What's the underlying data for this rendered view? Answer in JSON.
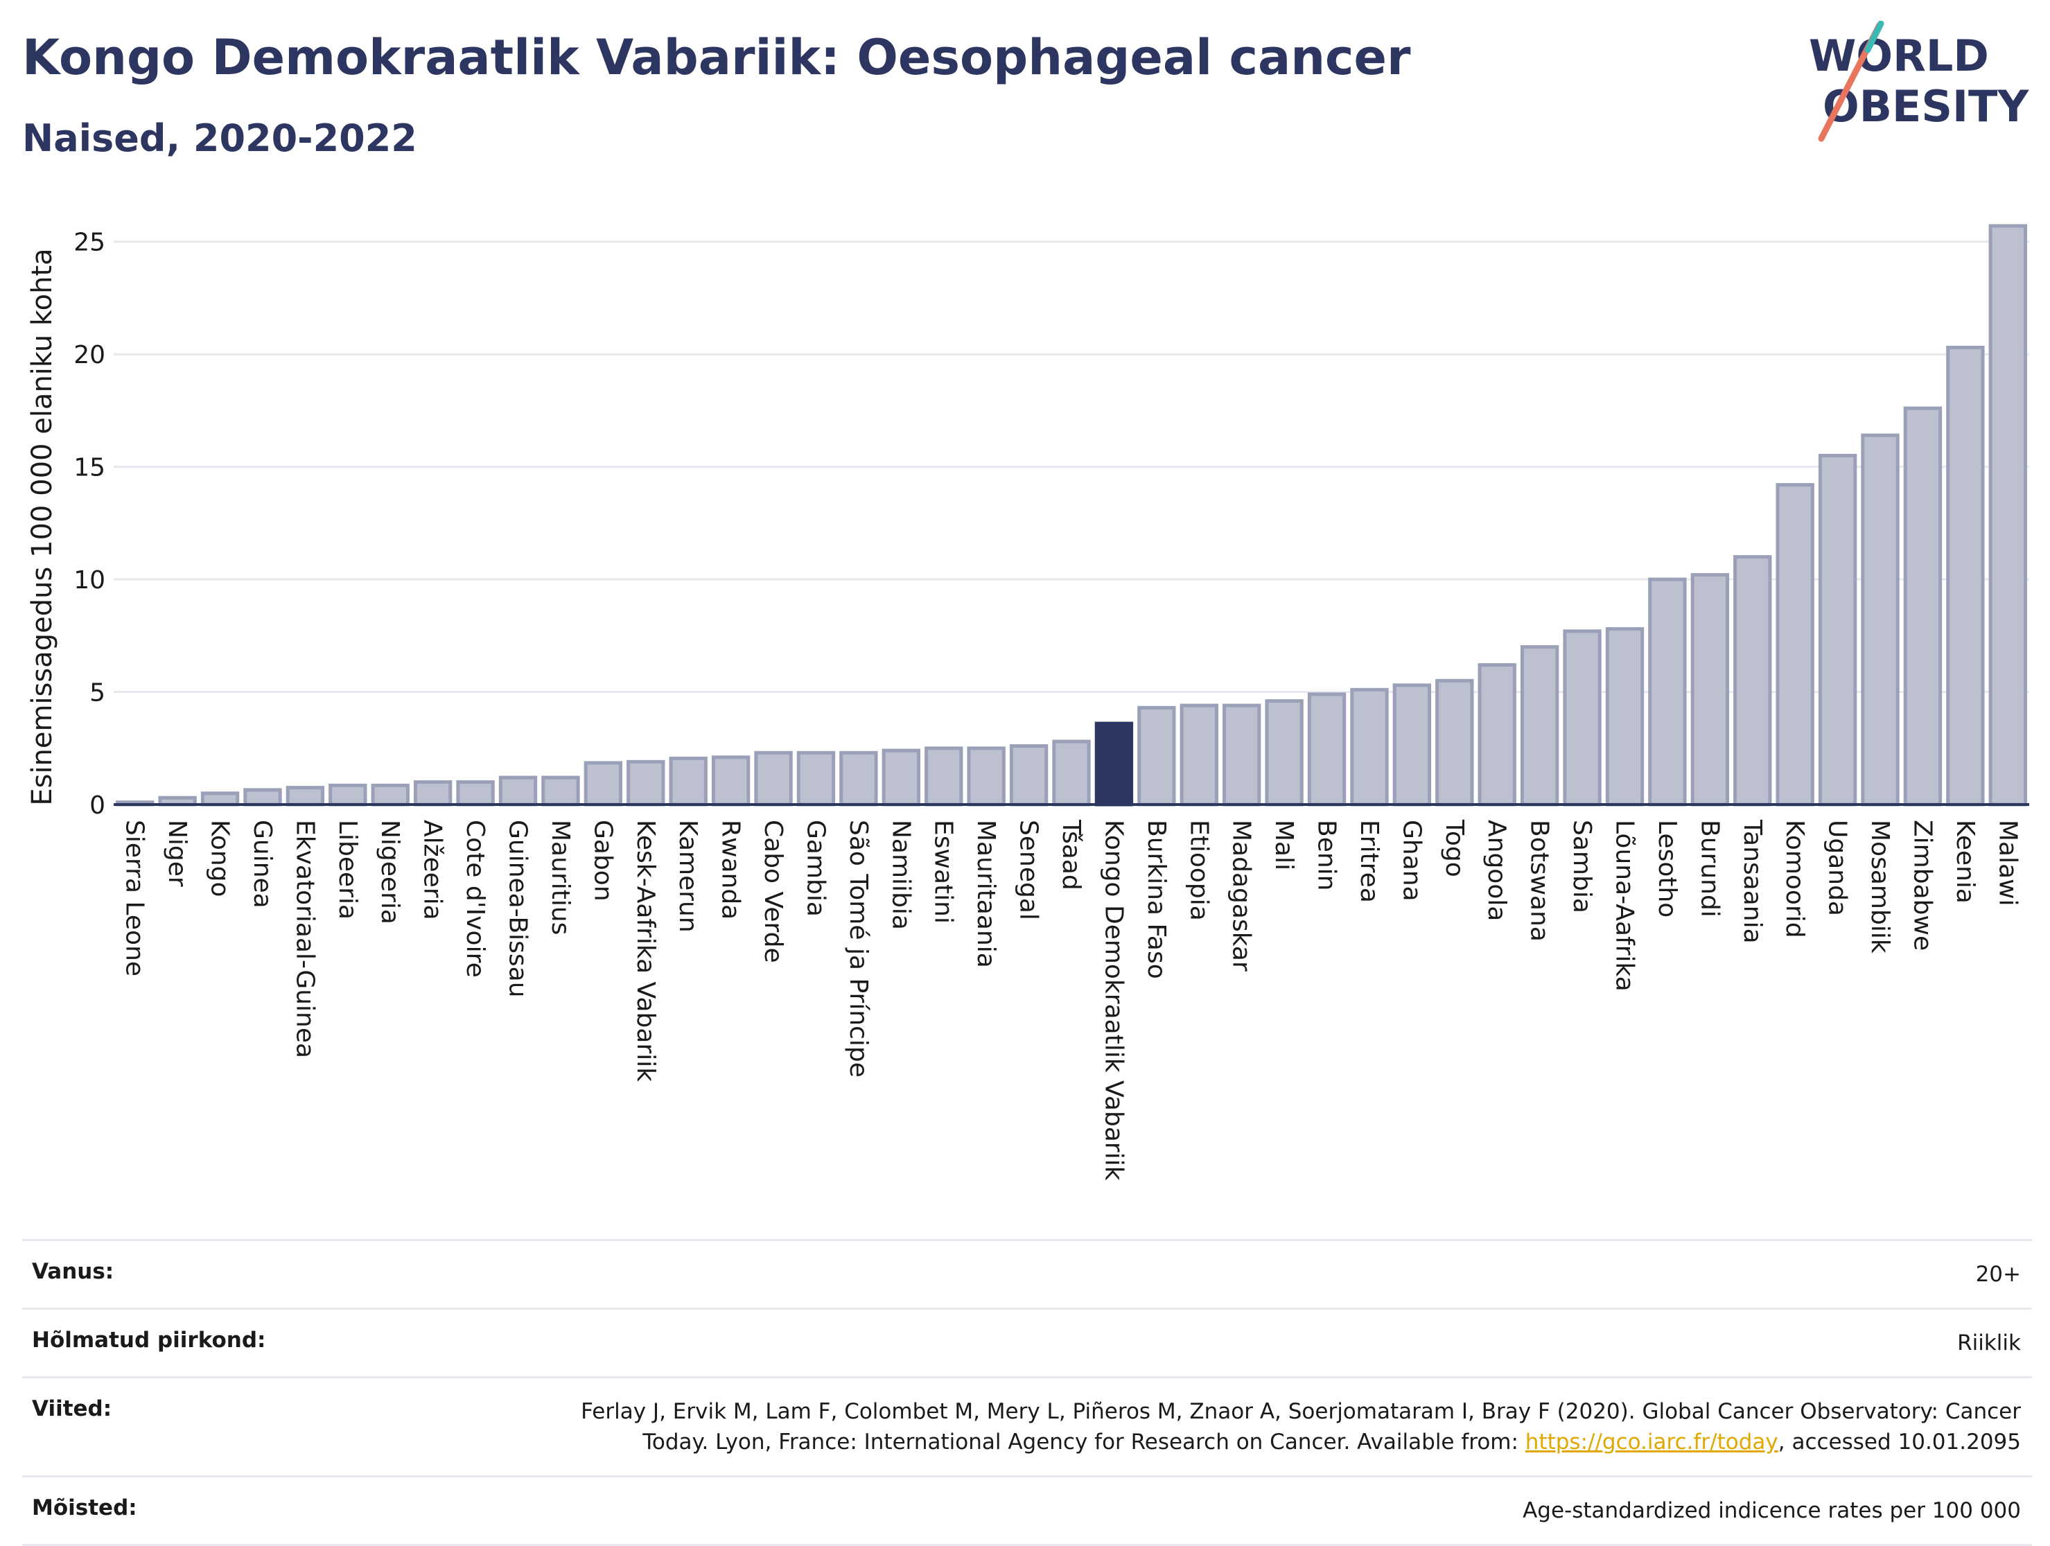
{
  "header": {
    "title": "Kongo Demokraatlik Vabariik: Oesophageal cancer",
    "subtitle": "Naised, 2020-2022"
  },
  "logo": {
    "line1": "WORLD",
    "line2": "OBESITY",
    "colors": [
      "#2d3561",
      "#e8765f",
      "#3cb8b5"
    ]
  },
  "chart_data": {
    "type": "bar",
    "ylabel": "Esinemissagedus 100 000 elaniku kohta",
    "ylim": [
      0,
      26.5
    ],
    "yticks": [
      0,
      5,
      10,
      15,
      20,
      25
    ],
    "highlight": "Kongo Demokraatlik Vabariik",
    "colors": {
      "bar": "#bcc0cf",
      "bar_border": "#9aa0b8",
      "highlight": "#2d3561",
      "grid": "#e6e9ee",
      "axis": "#2d3561"
    },
    "categories": [
      "Sierra Leone",
      "Niger",
      "Kongo",
      "Guinea",
      "Ekvatoriaal-Guinea",
      "Libeeria",
      "Nigeeria",
      "Alžeeria",
      "Cote d'Ivoire",
      "Guinea-Bissau",
      "Mauritius",
      "Gabon",
      "Kesk-Aafrika Vabariik",
      "Kamerun",
      "Rwanda",
      "Cabo Verde",
      "Gambia",
      "São Tomé ja Príncipe",
      "Namiibia",
      "Eswatini",
      "Mauritaania",
      "Senegal",
      "Tšaad",
      "Kongo Demokraatlik Vabariik",
      "Burkina Faso",
      "Etioopia",
      "Madagaskar",
      "Mali",
      "Benin",
      "Eritrea",
      "Ghana",
      "Togo",
      "Angoola",
      "Botswana",
      "Sambia",
      "Lõuna-Aafrika",
      "Lesotho",
      "Burundi",
      "Tansaania",
      "Komoorid",
      "Uganda",
      "Mosambiik",
      "Zimbabwe",
      "Keenia",
      "Malawi"
    ],
    "values": [
      0.1,
      0.3,
      0.5,
      0.65,
      0.75,
      0.85,
      0.85,
      1.0,
      1.0,
      1.2,
      1.2,
      1.85,
      1.9,
      2.05,
      2.1,
      2.3,
      2.3,
      2.3,
      2.4,
      2.5,
      2.5,
      2.6,
      2.8,
      3.6,
      4.3,
      4.4,
      4.4,
      4.6,
      4.9,
      5.1,
      5.3,
      5.5,
      6.2,
      7.0,
      7.7,
      7.8,
      10.0,
      10.2,
      11.0,
      14.2,
      15.5,
      16.4,
      17.6,
      20.3,
      25.7
    ]
  },
  "info": [
    {
      "label": "Vanus:",
      "value": "20+"
    },
    {
      "label": "Hõlmatud piirkond:",
      "value": "Riiklik"
    },
    {
      "label": "Viited:",
      "value_before": "Ferlay J, Ervik M, Lam F, Colombet M, Mery L, Piñeros M, Znaor A, Soerjomataram I, Bray F (2020). Global Cancer Observatory: Cancer Today. Lyon, France: International Agency for Research on Cancer. Available from: ",
      "link": "https://gco.iarc.fr/today",
      "value_after": ", accessed 10.01.2095"
    },
    {
      "label": "Mõisted:",
      "value": "Age-standardized indicence rates per 100 000"
    }
  ]
}
